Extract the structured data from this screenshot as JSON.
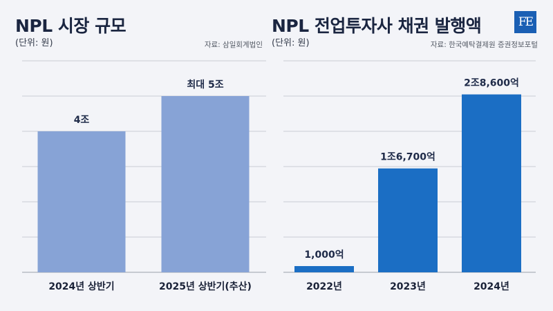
{
  "header": {
    "logo_text": "FE"
  },
  "chart_data": [
    {
      "type": "bar",
      "title": "NPL 시장 규모",
      "unit_label": "(단위: 원)",
      "source": "자료: 삼일회계법인",
      "categories": [
        "2024년 상반기",
        "2025년 상반기(추산)"
      ],
      "values": [
        4,
        5
      ],
      "value_unit": "조 원",
      "data_labels": [
        "4조",
        "최대 5조"
      ],
      "ylim": [
        0,
        6
      ],
      "grid": true,
      "bar_color": "#87a3d6"
    },
    {
      "type": "bar",
      "title": "NPL 전업투자사 채권 발행액",
      "unit_label": "(단위: 원)",
      "source": "자료: 한국예탁결제원 증권정보포털",
      "categories": [
        "2022년",
        "2023년",
        "2024년"
      ],
      "values": [
        1000,
        16700,
        28600
      ],
      "value_unit": "억 원",
      "data_labels": [
        "1,000억",
        "1조6,700억",
        "2조8,600억"
      ],
      "ylim": [
        0,
        34000
      ],
      "grid": true,
      "bar_color": "#1b6ec4"
    }
  ]
}
